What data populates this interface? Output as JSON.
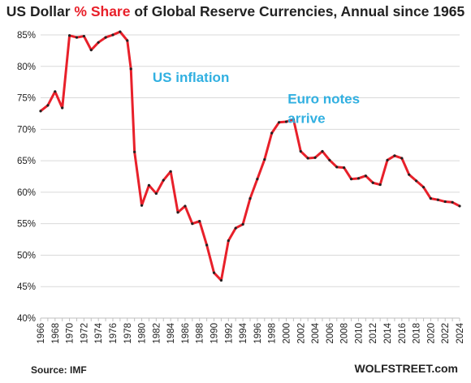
{
  "title": {
    "prefix": "US Dollar ",
    "accent": "% Share",
    "suffix": " of Global Reserve Currencies, Annual since 1965"
  },
  "source": "Source: IMF",
  "brand": "WOLFSTREET.com",
  "colors": {
    "line": "#e8202a",
    "marker": "#222222",
    "annotation": "#31b0e1",
    "grid": "#d9d9d9",
    "title_accent": "#e8202a"
  },
  "chart_data": {
    "type": "line",
    "title": "US Dollar % Share of Global Reserve Currencies, Annual since 1965",
    "xlabel": "",
    "ylabel": "",
    "ylim": [
      40,
      85
    ],
    "xlim": [
      1966,
      2024
    ],
    "y_ticks": [
      40,
      45,
      50,
      55,
      60,
      65,
      70,
      75,
      80,
      85
    ],
    "y_tick_labels": [
      "40%",
      "45%",
      "50%",
      "55%",
      "60%",
      "65%",
      "70%",
      "75%",
      "80%",
      "85%"
    ],
    "x_tick_labels": [
      "1966",
      "1968",
      "1970",
      "1972",
      "1974",
      "1976",
      "1978",
      "1980",
      "1982",
      "1984",
      "1986",
      "1988",
      "1990",
      "1992",
      "1994",
      "1996",
      "1998",
      "2000",
      "2002",
      "2004",
      "2006",
      "2008",
      "2010",
      "2012",
      "2014",
      "2016",
      "2018",
      "2020",
      "2022",
      "2024"
    ],
    "grid": "horizontal",
    "legend": "none",
    "series": [
      {
        "points": [
          [
            1966,
            72.9
          ],
          [
            1967,
            73.8
          ],
          [
            1968,
            76.0
          ],
          [
            1969,
            73.4
          ],
          [
            1970,
            84.9
          ],
          [
            1971,
            84.6
          ],
          [
            1972,
            84.8
          ],
          [
            1973,
            82.6
          ],
          [
            1974,
            83.8
          ],
          [
            1975,
            84.6
          ],
          [
            1976,
            85.0
          ],
          [
            1977,
            85.5
          ],
          [
            1978,
            84.1
          ],
          [
            1978.5,
            79.6
          ],
          [
            1979,
            66.4
          ],
          [
            1980,
            57.9
          ],
          [
            1981,
            61.1
          ],
          [
            1982,
            59.8
          ],
          [
            1983,
            61.9
          ],
          [
            1984,
            63.3
          ],
          [
            1985,
            56.8
          ],
          [
            1986,
            57.8
          ],
          [
            1987,
            55.0
          ],
          [
            1988,
            55.4
          ],
          [
            1989,
            51.6
          ],
          [
            1990,
            47.2
          ],
          [
            1991,
            46.0
          ],
          [
            1992,
            52.3
          ],
          [
            1993,
            54.3
          ],
          [
            1994,
            54.9
          ],
          [
            1995,
            59.0
          ],
          [
            1996,
            62.1
          ],
          [
            1997,
            65.2
          ],
          [
            1998,
            69.4
          ],
          [
            1999,
            71.1
          ],
          [
            2000,
            71.2
          ],
          [
            2001,
            71.6
          ],
          [
            2002,
            66.5
          ],
          [
            2003,
            65.4
          ],
          [
            2004,
            65.5
          ],
          [
            2005,
            66.5
          ],
          [
            2006,
            65.1
          ],
          [
            2007,
            64.0
          ],
          [
            2008,
            63.9
          ],
          [
            2009,
            62.1
          ],
          [
            2010,
            62.2
          ],
          [
            2011,
            62.6
          ],
          [
            2012,
            61.5
          ],
          [
            2013,
            61.2
          ],
          [
            2014,
            65.1
          ],
          [
            2015,
            65.8
          ],
          [
            2016,
            65.4
          ],
          [
            2017,
            62.8
          ],
          [
            2018,
            61.8
          ],
          [
            2019,
            60.8
          ],
          [
            2020,
            59.0
          ],
          [
            2021,
            58.8
          ],
          [
            2022,
            58.5
          ],
          [
            2023,
            58.4
          ],
          [
            2024,
            57.8
          ]
        ]
      }
    ],
    "annotations": [
      {
        "text": "US inflation",
        "x": 1981.5,
        "y": 77.5
      },
      {
        "text": "Euro notes",
        "x": 2000.2,
        "y": 74.1
      },
      {
        "text": "arrive",
        "x": 2000.2,
        "y": 71.0
      }
    ]
  }
}
